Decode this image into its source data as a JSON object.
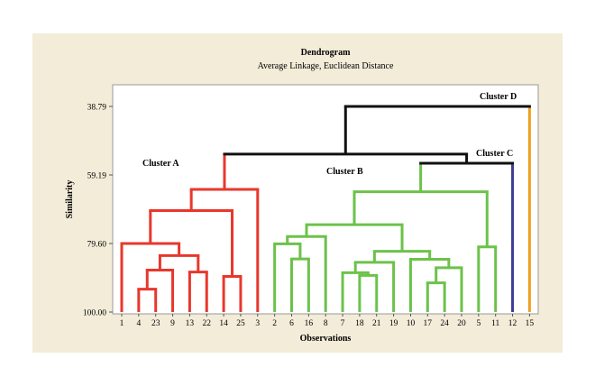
{
  "colors": {
    "outer_background": "#f2ecd8",
    "plot_background": "#ffffff",
    "frame": "#9a9a9a",
    "cluster_a": "#e8372c",
    "cluster_b": "#6cc24a",
    "cluster_c": "#3e3d96",
    "cluster_d": "#f0a020",
    "link": "#111111"
  },
  "chart_data": {
    "type": "dendrogram",
    "title": "Dendrogram",
    "subtitle": "Average Linkage, Euclidean Distance",
    "xlabel": "Observations",
    "ylabel": "Similarity",
    "ylim": [
      38.79,
      100.0
    ],
    "y_ticks": [
      "38.79",
      "59.19",
      "79.60",
      "100.00"
    ],
    "leaves": [
      "1",
      "4",
      "23",
      "9",
      "13",
      "22",
      "14",
      "25",
      "3",
      "2",
      "6",
      "16",
      "8",
      "7",
      "18",
      "21",
      "19",
      "10",
      "17",
      "24",
      "20",
      "5",
      "11",
      "12",
      "15"
    ],
    "merges": [
      {
        "left": "4",
        "right": "23",
        "similarity": 93.2,
        "group": "a"
      },
      {
        "left": "m1",
        "right": "9",
        "similarity": 87.5,
        "group": "a"
      },
      {
        "left": "13",
        "right": "22",
        "similarity": 88.1,
        "group": "a"
      },
      {
        "left": "m2",
        "right": "m3",
        "similarity": 83.2,
        "group": "a"
      },
      {
        "left": "1",
        "right": "m4",
        "similarity": 79.6,
        "group": "a"
      },
      {
        "left": "14",
        "right": "25",
        "similarity": 89.4,
        "group": "a"
      },
      {
        "left": "m5",
        "right": "m6",
        "similarity": 69.8,
        "group": "a"
      },
      {
        "left": "m7",
        "right": "3",
        "similarity": 63.5,
        "group": "a"
      },
      {
        "left": "6",
        "right": "16",
        "similarity": 84.2,
        "group": "b"
      },
      {
        "left": "2",
        "right": "m9",
        "similarity": 79.7,
        "group": "b"
      },
      {
        "left": "m10",
        "right": "8",
        "similarity": 77.5,
        "group": "b"
      },
      {
        "left": "18",
        "right": "21",
        "similarity": 89.1,
        "group": "b"
      },
      {
        "left": "7",
        "right": "m12",
        "similarity": 88.3,
        "group": "b"
      },
      {
        "left": "m13",
        "right": "19",
        "similarity": 85.2,
        "group": "b"
      },
      {
        "left": "17",
        "right": "24",
        "similarity": 91.3,
        "group": "b"
      },
      {
        "left": "m15",
        "right": "20",
        "similarity": 86.8,
        "group": "b"
      },
      {
        "left": "10",
        "right": "m16",
        "similarity": 84.3,
        "group": "b"
      },
      {
        "left": "m14",
        "right": "m17",
        "similarity": 81.9,
        "group": "b"
      },
      {
        "left": "m11",
        "right": "m18",
        "similarity": 74.0,
        "group": "b"
      },
      {
        "left": "5",
        "right": "11",
        "similarity": 80.6,
        "group": "b"
      },
      {
        "left": "m19",
        "right": "m20",
        "similarity": 64.2,
        "group": "b"
      },
      {
        "left": "m21",
        "right": "12",
        "similarity": 55.7,
        "group": "link"
      },
      {
        "left": "m8",
        "right": "m22",
        "similarity": 53.0,
        "group": "link"
      },
      {
        "left": "m23",
        "right": "15",
        "similarity": 38.79,
        "group": "link"
      }
    ],
    "leaf_groups": {
      "a": [
        "1",
        "4",
        "23",
        "9",
        "13",
        "22",
        "14",
        "25",
        "3"
      ],
      "b": [
        "2",
        "6",
        "16",
        "8",
        "7",
        "18",
        "21",
        "19",
        "10",
        "17",
        "24",
        "20",
        "5",
        "11"
      ],
      "c": [
        "12"
      ],
      "d": [
        "15"
      ]
    },
    "annotations": [
      {
        "text": "Cluster A",
        "near": "group-a"
      },
      {
        "text": "Cluster B",
        "near": "group-b"
      },
      {
        "text": "Cluster C",
        "near": "leaf-12"
      },
      {
        "text": "Cluster D",
        "near": "leaf-15"
      }
    ]
  }
}
